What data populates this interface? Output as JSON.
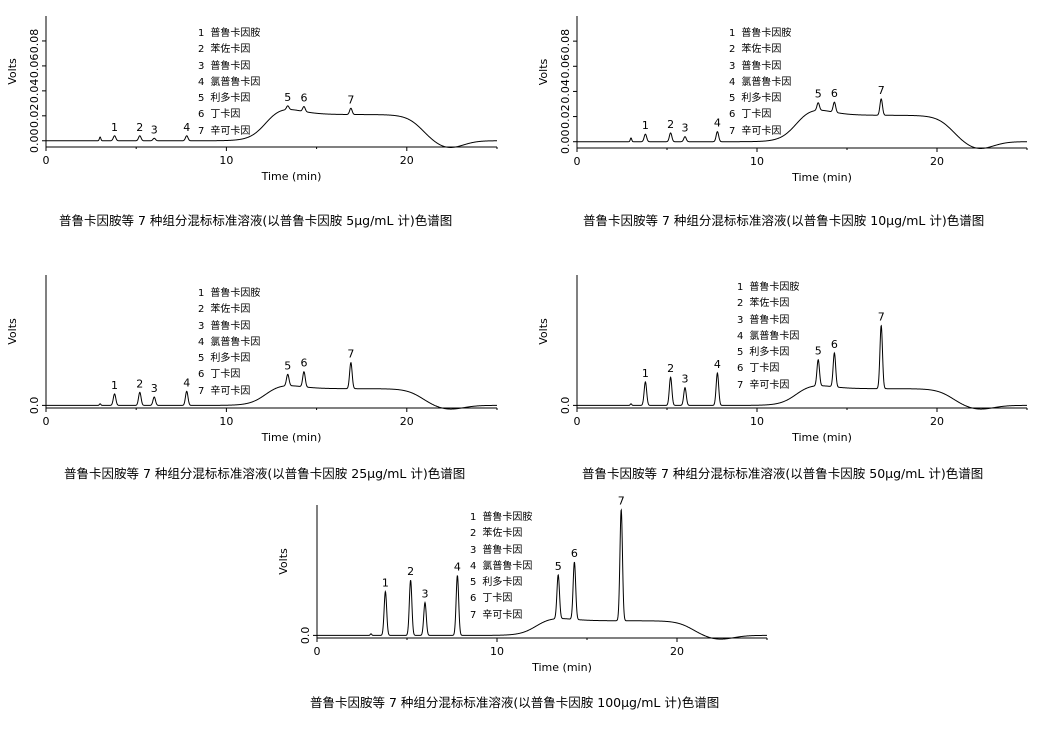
{
  "peak_names": [
    "普鲁卡因胺",
    "苯佐卡因",
    "普鲁卡因",
    "氯普鲁卡因",
    "利多卡因",
    "丁卡因",
    "辛可卡因"
  ],
  "chart_data": [
    {
      "type": "line",
      "caption": "普鲁卡因胺等 7 种组分混标标准溶液(以普鲁卡因胺 5μg/mL 计)色谱图",
      "xlabel": "Time (min)",
      "ylabel": "Volts",
      "xlim": [
        0,
        25
      ],
      "ylim": [
        -0.005,
        0.1
      ],
      "x_ticks": [
        0,
        10,
        20
      ],
      "y_ticks": [
        0.0,
        0.02,
        0.04,
        0.06,
        0.08
      ],
      "y_tick_labels": [
        "0.00",
        "0.02",
        "0.04",
        "0.06",
        "0.08"
      ],
      "peaks": [
        {
          "label": "1",
          "time": 3.8,
          "height": 0.004
        },
        {
          "label": "2",
          "time": 5.2,
          "height": 0.004
        },
        {
          "label": "3",
          "time": 6.0,
          "height": 0.002
        },
        {
          "label": "4",
          "time": 7.8,
          "height": 0.004
        },
        {
          "label": "5",
          "time": 13.4,
          "height": 0.003
        },
        {
          "label": "6",
          "time": 14.3,
          "height": 0.004
        },
        {
          "label": "7",
          "time": 16.9,
          "height": 0.005
        }
      ],
      "baseline": {
        "hump_height": 0.03,
        "plateau": 0.021,
        "dip": -0.006
      }
    },
    {
      "type": "line",
      "caption": "普鲁卡因胺等 7 种组分混标标准溶液(以普鲁卡因胺 10μg/mL 计)色谱图",
      "xlabel": "Time (min)",
      "ylabel": "Volts",
      "xlim": [
        0,
        25
      ],
      "ylim": [
        -0.005,
        0.1
      ],
      "x_ticks": [
        0,
        10,
        20
      ],
      "y_ticks": [
        0.0,
        0.02,
        0.04,
        0.06,
        0.08
      ],
      "y_tick_labels": [
        "0.00",
        "0.02",
        "0.04",
        "0.06",
        "0.08"
      ],
      "peaks": [
        {
          "label": "1",
          "time": 3.8,
          "height": 0.006
        },
        {
          "label": "2",
          "time": 5.2,
          "height": 0.007
        },
        {
          "label": "3",
          "time": 6.0,
          "height": 0.004
        },
        {
          "label": "4",
          "time": 7.8,
          "height": 0.008
        },
        {
          "label": "5",
          "time": 13.4,
          "height": 0.006
        },
        {
          "label": "6",
          "time": 14.3,
          "height": 0.008
        },
        {
          "label": "7",
          "time": 16.9,
          "height": 0.013
        }
      ],
      "baseline": {
        "hump_height": 0.03,
        "plateau": 0.021,
        "dip": -0.006
      }
    },
    {
      "type": "line",
      "caption": "普鲁卡因胺等 7 种组分混标标准溶液(以普鲁卡因胺 25μg/mL 计)色谱图",
      "xlabel": "Time (min)",
      "ylabel": "Volts",
      "xlim": [
        0,
        25
      ],
      "ylim": [
        -0.005,
        0.25
      ],
      "x_ticks": [
        0,
        10,
        20
      ],
      "y_ticks": [
        0.0
      ],
      "y_tick_labels": [
        "0.0"
      ],
      "peaks": [
        {
          "label": "1",
          "time": 3.8,
          "height": 0.022
        },
        {
          "label": "2",
          "time": 5.2,
          "height": 0.025
        },
        {
          "label": "3",
          "time": 6.0,
          "height": 0.016
        },
        {
          "label": "4",
          "time": 7.8,
          "height": 0.027
        },
        {
          "label": "5",
          "time": 13.4,
          "height": 0.022
        },
        {
          "label": "6",
          "time": 14.3,
          "height": 0.029
        },
        {
          "label": "7",
          "time": 16.9,
          "height": 0.05
        }
      ],
      "baseline": {
        "hump_height": 0.045,
        "plateau": 0.032,
        "dip": -0.008
      }
    },
    {
      "type": "line",
      "caption": "普鲁卡因胺等 7 种组分混标标准溶液(以普鲁卡因胺 50μg/mL 计)色谱图",
      "xlabel": "Time (min)",
      "ylabel": "Volts",
      "xlim": [
        0,
        25
      ],
      "ylim": [
        -0.005,
        0.25
      ],
      "x_ticks": [
        0,
        10,
        20
      ],
      "y_ticks": [
        0.0
      ],
      "y_tick_labels": [
        "0.0"
      ],
      "peaks": [
        {
          "label": "1",
          "time": 3.8,
          "height": 0.045
        },
        {
          "label": "2",
          "time": 5.2,
          "height": 0.054
        },
        {
          "label": "3",
          "time": 6.0,
          "height": 0.034
        },
        {
          "label": "4",
          "time": 7.8,
          "height": 0.062
        },
        {
          "label": "5",
          "time": 13.4,
          "height": 0.05
        },
        {
          "label": "6",
          "time": 14.3,
          "height": 0.065
        },
        {
          "label": "7",
          "time": 16.9,
          "height": 0.121
        }
      ],
      "baseline": {
        "hump_height": 0.045,
        "plateau": 0.032,
        "dip": -0.008
      }
    },
    {
      "type": "line",
      "caption": "普鲁卡因胺等 7 种组分混标标准溶液(以普鲁卡因胺 100μg/mL 计)色谱图",
      "xlabel": "Time (min)",
      "ylabel": "Volts",
      "xlim": [
        0,
        25
      ],
      "ylim": [
        -0.005,
        0.25
      ],
      "x_ticks": [
        0,
        10,
        20
      ],
      "y_ticks": [
        0.0
      ],
      "y_tick_labels": [
        "0.0"
      ],
      "peaks": [
        {
          "label": "1",
          "time": 3.8,
          "height": 0.084
        },
        {
          "label": "2",
          "time": 5.2,
          "height": 0.106
        },
        {
          "label": "3",
          "time": 6.0,
          "height": 0.063
        },
        {
          "label": "4",
          "time": 7.8,
          "height": 0.115
        },
        {
          "label": "5",
          "time": 13.4,
          "height": 0.084
        },
        {
          "label": "6",
          "time": 14.3,
          "height": 0.11
        },
        {
          "label": "7",
          "time": 16.9,
          "height": 0.213
        }
      ],
      "baseline": {
        "hump_height": 0.038,
        "plateau": 0.028,
        "dip": -0.008
      }
    }
  ]
}
